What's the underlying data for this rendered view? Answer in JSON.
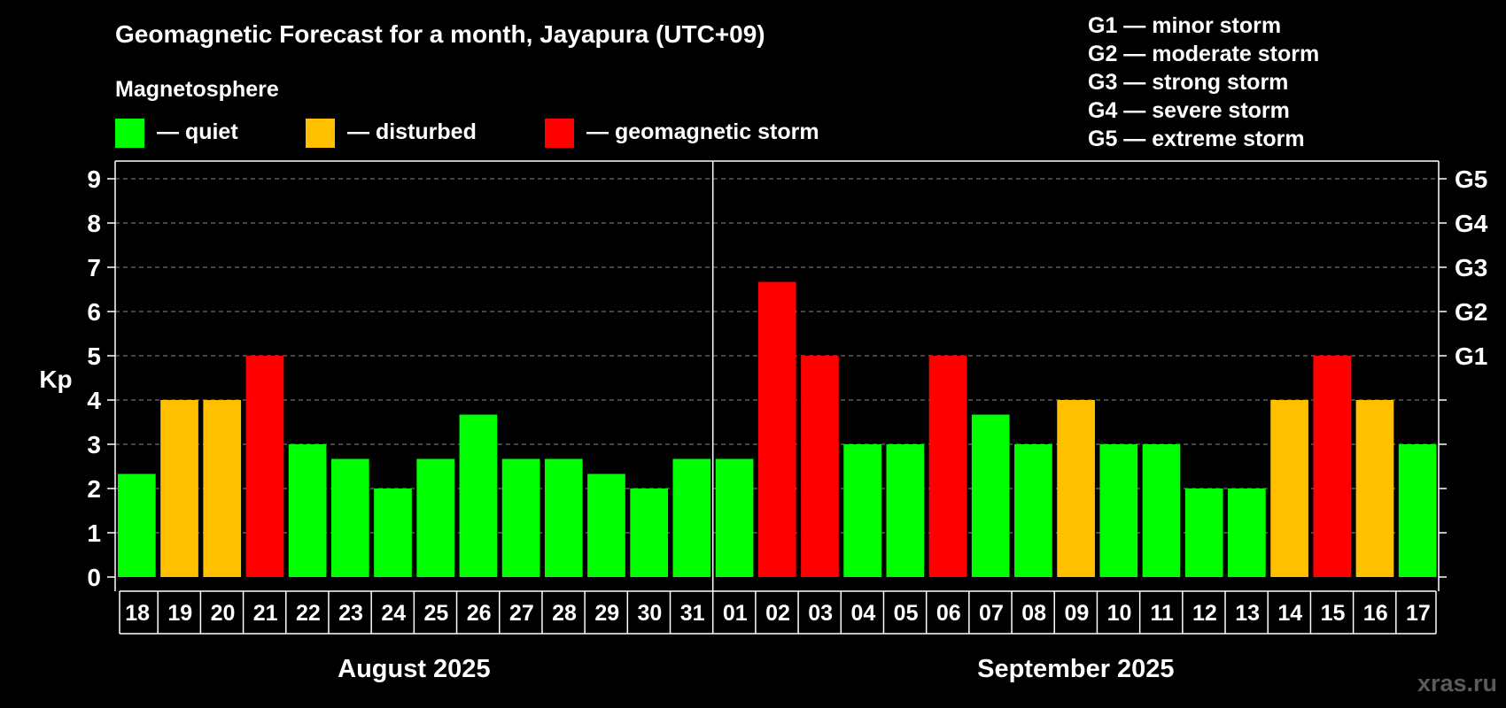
{
  "chart_data": {
    "type": "bar",
    "title": "Geomagnetic Forecast for a month, Jayapura (UTC+09)",
    "subtitle": "Magnetosphere",
    "ylabel": "Kp",
    "ylim": [
      0,
      9
    ],
    "yticks": [
      "0",
      "1",
      "2",
      "3",
      "4",
      "5",
      "6",
      "7",
      "8",
      "9"
    ],
    "grid": true,
    "legend": [
      {
        "label": "— quiet",
        "color": "#00ff00"
      },
      {
        "label": "— disturbed",
        "color": "#ffc000"
      },
      {
        "label": "— geomagnetic storm",
        "color": "#ff0000"
      }
    ],
    "storm_scale": [
      "G1 — minor storm",
      "G2 — moderate storm",
      "G3 — strong storm",
      "G4 — severe storm",
      "G5 — extreme storm"
    ],
    "right_axis_labels": [
      {
        "kp": 5,
        "label": "G1"
      },
      {
        "kp": 6,
        "label": "G2"
      },
      {
        "kp": 7,
        "label": "G3"
      },
      {
        "kp": 8,
        "label": "G4"
      },
      {
        "kp": 9,
        "label": "G5"
      }
    ],
    "categories": [
      "18",
      "19",
      "20",
      "21",
      "22",
      "23",
      "24",
      "25",
      "26",
      "27",
      "28",
      "29",
      "30",
      "31",
      "01",
      "02",
      "03",
      "04",
      "05",
      "06",
      "07",
      "08",
      "09",
      "10",
      "11",
      "12",
      "13",
      "14",
      "15",
      "16",
      "17"
    ],
    "values": [
      2.33,
      4,
      4,
      5,
      3,
      2.67,
      2,
      2.67,
      3.67,
      2.67,
      2.67,
      2.33,
      2,
      2.67,
      2.67,
      6.67,
      5,
      3,
      3,
      5,
      3.67,
      3,
      4,
      3,
      3,
      2,
      2,
      4,
      5,
      4,
      3
    ],
    "status": [
      "quiet",
      "disturbed",
      "disturbed",
      "storm",
      "quiet",
      "quiet",
      "quiet",
      "quiet",
      "quiet",
      "quiet",
      "quiet",
      "quiet",
      "quiet",
      "quiet",
      "quiet",
      "storm",
      "storm",
      "quiet",
      "quiet",
      "storm",
      "quiet",
      "quiet",
      "disturbed",
      "quiet",
      "quiet",
      "quiet",
      "quiet",
      "disturbed",
      "storm",
      "disturbed",
      "quiet"
    ],
    "status_colors": {
      "quiet": "#00ff00",
      "disturbed": "#ffc000",
      "storm": "#ff0000"
    },
    "months": [
      {
        "label": "August 2025",
        "start": 0,
        "end": 13
      },
      {
        "label": "September 2025",
        "start": 14,
        "end": 30
      }
    ],
    "watermark": "xras.ru"
  }
}
